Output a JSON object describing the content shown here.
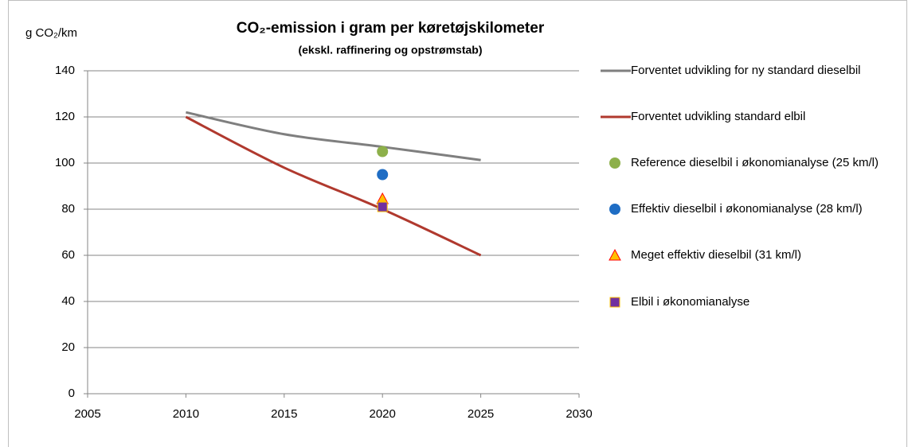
{
  "chart_data": {
    "type": "line",
    "title": "CO₂-emission  i gram per køretøjskilometer",
    "subtitle": "(ekskl.  raffinering og opstrømstab)",
    "y_label": "g CO₂/km",
    "xlim": [
      2005,
      2030
    ],
    "xticks": [
      2005,
      2010,
      2015,
      2020,
      2025,
      2030
    ],
    "ylim": [
      0,
      140
    ],
    "yticks": [
      0,
      20,
      40,
      60,
      80,
      100,
      120,
      140
    ],
    "grid": true,
    "legend": "right",
    "series": [
      {
        "name": "Forventet udvikling for ny standard dieselbil",
        "type": "line",
        "color": "#7f7f7f",
        "x": [
          2010,
          2015,
          2020,
          2025
        ],
        "values": [
          122,
          112.5,
          107,
          101.3
        ]
      },
      {
        "name": "Forventet udvikling standard elbil",
        "type": "line",
        "color": "#b0392e",
        "x": [
          2010,
          2015,
          2020,
          2025
        ],
        "values": [
          120,
          98,
          80,
          60
        ]
      },
      {
        "name": "Reference dieselbil i økonomianalyse (25 km/l)",
        "type": "scatter",
        "marker": "circle",
        "color": "#8db04a",
        "x": [
          2020
        ],
        "values": [
          105
        ]
      },
      {
        "name": "Effektiv dieselbil i økonomianalyse (28 km/l)",
        "type": "scatter",
        "marker": "circle",
        "color": "#1f6dc4",
        "x": [
          2020
        ],
        "values": [
          95
        ]
      },
      {
        "name": "Meget effektiv dieselbil (31 km/l)",
        "type": "scatter",
        "marker": "triangle",
        "color": "#ffc000",
        "x": [
          2020
        ],
        "values": [
          84.5
        ]
      },
      {
        "name": "Elbil i økonomianalyse",
        "type": "scatter",
        "marker": "square",
        "color": "#7030a0",
        "x": [
          2020
        ],
        "values": [
          81
        ]
      }
    ]
  }
}
